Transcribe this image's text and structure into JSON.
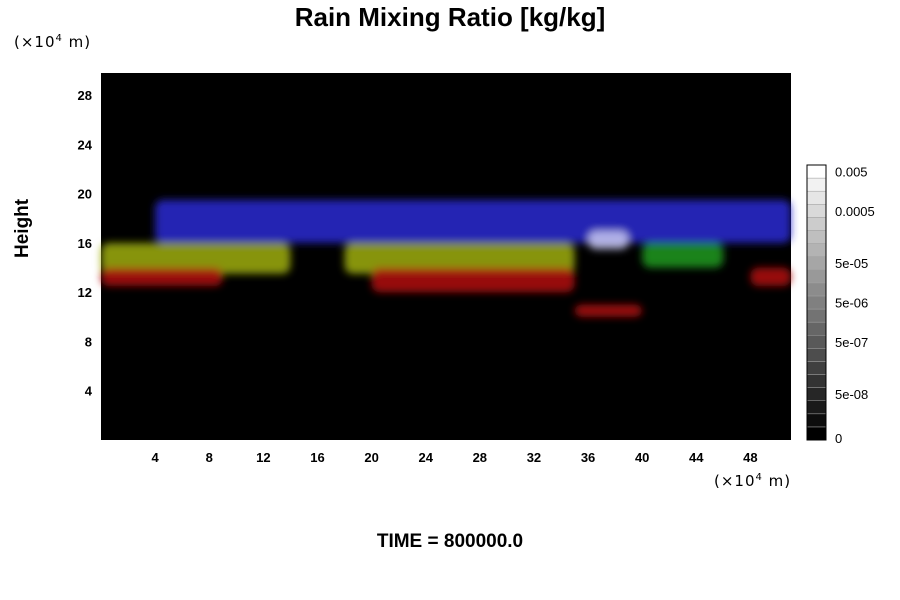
{
  "figure": {
    "title": "Rain Mixing Ratio [kg/kg]",
    "time_label": "TIME = 800000.0",
    "y_unit": {
      "prefix": "(×10",
      "exp": "4",
      "suffix": " m)"
    },
    "x_unit": {
      "prefix": "(×10",
      "exp": "4",
      "suffix": " m)"
    }
  },
  "chart_data": {
    "type": "heatmap",
    "title": "Rain Mixing Ratio [kg/kg]",
    "xlabel": "",
    "ylabel": "Height",
    "x_unit": "×10^4 m",
    "y_unit": "×10^4 m",
    "xlim": [
      0,
      51
    ],
    "ylim": [
      0,
      29.8
    ],
    "x_ticks": [
      4,
      8,
      12,
      16,
      20,
      24,
      28,
      32,
      36,
      40,
      44,
      48
    ],
    "y_ticks": [
      4,
      8,
      12,
      16,
      20,
      24,
      28
    ],
    "background_color": "#000000",
    "colorbar": {
      "labels": [
        "0",
        "5e-08",
        "5e-07",
        "5e-06",
        "5e-05",
        "0.0005",
        "0.005"
      ],
      "levels": 21,
      "colors": [
        "#000000",
        "#ffffff"
      ]
    },
    "features": [
      {
        "layer": "blue",
        "color": "#2a2ad2",
        "x": [
          4,
          51
        ],
        "y": [
          16,
          19.5
        ]
      },
      {
        "layer": "yellow",
        "color": "#9fae12",
        "x": [
          0,
          14
        ],
        "y": [
          13.5,
          16
        ]
      },
      {
        "layer": "yellow",
        "color": "#9fae12",
        "x": [
          18,
          35
        ],
        "y": [
          13.5,
          16
        ]
      },
      {
        "layer": "white",
        "color": "#c9c9f2",
        "x": [
          36,
          39
        ],
        "y": [
          15.5,
          17
        ]
      },
      {
        "layer": "green",
        "color": "#1f9a1f",
        "x": [
          40,
          46
        ],
        "y": [
          14,
          16
        ]
      },
      {
        "layer": "red",
        "color": "#b21010",
        "x": [
          0,
          9
        ],
        "y": [
          12.5,
          14
        ]
      },
      {
        "layer": "red",
        "color": "#b21010",
        "x": [
          20,
          35
        ],
        "y": [
          12,
          14
        ]
      },
      {
        "layer": "red",
        "color": "#b21010",
        "x": [
          35,
          40
        ],
        "y": [
          10,
          11
        ]
      },
      {
        "layer": "red",
        "color": "#b21010",
        "x": [
          48,
          51
        ],
        "y": [
          12.5,
          14
        ]
      }
    ]
  }
}
